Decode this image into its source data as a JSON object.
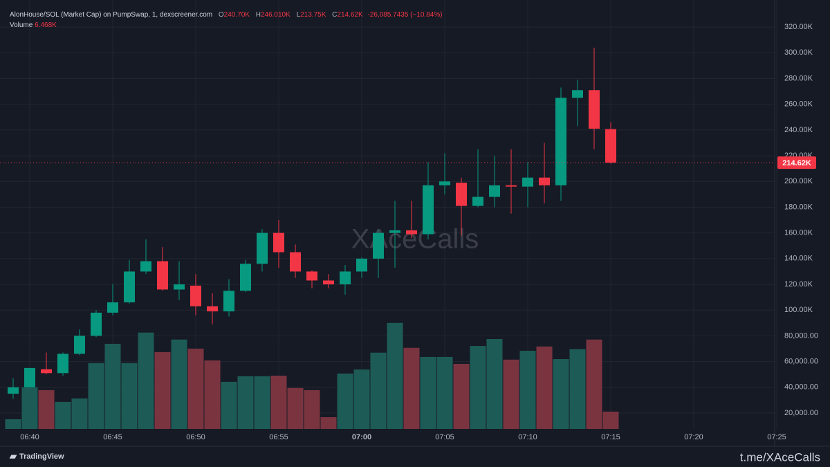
{
  "chart_data": {
    "type": "candlestick",
    "header": {
      "symbol": "AlonHouse/SOL (Market Cap) on PumpSwap, 1, dexscreener.com",
      "o_key": "O",
      "o": "240.70K",
      "h_key": "H",
      "h": "246.010K",
      "l_key": "L",
      "l": "213.75K",
      "c_key": "C",
      "c": "214.62K",
      "change": "-26,085.7435 (−10.84%)",
      "volume_key": "Volume",
      "volume": "6.468K"
    },
    "watermark": "XAceCalls",
    "brand": "TradingView",
    "footer": "t.me/XAceCalls",
    "x": [
      "06:39",
      "06:40",
      "06:41",
      "06:42",
      "06:43",
      "06:44",
      "06:45",
      "06:46",
      "06:47",
      "06:48",
      "06:49",
      "06:50",
      "06:51",
      "06:52",
      "06:53",
      "06:54",
      "06:55",
      "06:56",
      "06:57",
      "06:58",
      "06:59",
      "07:00",
      "07:01",
      "07:02",
      "07:03",
      "07:04",
      "07:05",
      "07:06",
      "07:07",
      "07:08",
      "07:09",
      "07:10",
      "07:11",
      "07:12",
      "07:13",
      "07:14",
      "07:15"
    ],
    "open": [
      35000,
      40000,
      54000,
      51000,
      66000,
      80000,
      98000,
      106000,
      130000,
      138000,
      116000,
      119000,
      103000,
      99000,
      115000,
      136000,
      160000,
      145000,
      130000,
      123000,
      120000,
      130000,
      140000,
      160000,
      162000,
      159000,
      197000,
      199000,
      181000,
      188000,
      197000,
      196000,
      203000,
      197000,
      265000,
      271000,
      240700
    ],
    "high": [
      47000,
      55000,
      67000,
      67000,
      85000,
      100000,
      120000,
      139000,
      155000,
      149000,
      138000,
      128000,
      113000,
      124000,
      139000,
      163000,
      170000,
      151000,
      131000,
      128000,
      135000,
      141000,
      162000,
      185000,
      185000,
      215000,
      222000,
      203000,
      225000,
      220000,
      225000,
      215000,
      230000,
      273000,
      279000,
      304000,
      246010
    ],
    "low": [
      31000,
      40000,
      50000,
      49000,
      65000,
      79000,
      96000,
      105000,
      128000,
      115000,
      108000,
      96000,
      89000,
      95000,
      114000,
      130000,
      133000,
      125000,
      117000,
      117000,
      112000,
      125000,
      125000,
      133000,
      156000,
      155000,
      190000,
      158000,
      180000,
      180000,
      175000,
      180000,
      183000,
      185000,
      243000,
      225000,
      213750
    ],
    "close": [
      40000,
      55000,
      51000,
      66000,
      80000,
      98000,
      106000,
      130000,
      138000,
      116000,
      120000,
      103000,
      99000,
      115000,
      136000,
      160000,
      145000,
      130000,
      123000,
      120000,
      130000,
      140000,
      160000,
      162000,
      159000,
      197000,
      200000,
      181000,
      188000,
      197000,
      196000,
      203000,
      197000,
      265000,
      271000,
      241000,
      214620
    ],
    "volume": [
      3620,
      15500,
      14500,
      10100,
      11400,
      24600,
      31800,
      24600,
      36000,
      28700,
      33400,
      30000,
      25600,
      17600,
      19700,
      19700,
      19900,
      15300,
      14500,
      4400,
      20700,
      22200,
      28500,
      39600,
      30300,
      26900,
      26900,
      24300,
      31000,
      33600,
      25900,
      29200,
      30800,
      26100,
      29800,
      33400,
      6468
    ],
    "up_color": "#089981",
    "down_color": "#f23645",
    "up_volume_color": "#1d5c56",
    "down_volume_color": "#7a3440",
    "ylim": [
      7600,
      326000
    ],
    "vlim": [
      0,
      153000
    ],
    "yticks": [
      {
        "value": 20000,
        "label": "20,000.00"
      },
      {
        "value": 40000,
        "label": "40,000.00"
      },
      {
        "value": 60000,
        "label": "60,000.00"
      },
      {
        "value": 80000,
        "label": "80,000.00"
      },
      {
        "value": 100000,
        "label": "100.00K"
      },
      {
        "value": 120000,
        "label": "120.00K"
      },
      {
        "value": 140000,
        "label": "140.00K"
      },
      {
        "value": 160000,
        "label": "160.00K"
      },
      {
        "value": 180000,
        "label": "180.00K"
      },
      {
        "value": 200000,
        "label": "200.00K"
      },
      {
        "value": 220000,
        "label": "220.00K"
      },
      {
        "value": 240000,
        "label": "240.00K"
      },
      {
        "value": 260000,
        "label": "260.00K"
      },
      {
        "value": 280000,
        "label": "280.00K"
      },
      {
        "value": 300000,
        "label": "300.00K"
      },
      {
        "value": 320000,
        "label": "320.00K"
      }
    ],
    "xticks": [
      "06:40",
      "06:45",
      "06:50",
      "06:55",
      "07:00",
      "07:05",
      "07:10",
      "07:15",
      "07:20",
      "07:25"
    ],
    "bold_xtick": "07:00",
    "grid": true
  }
}
